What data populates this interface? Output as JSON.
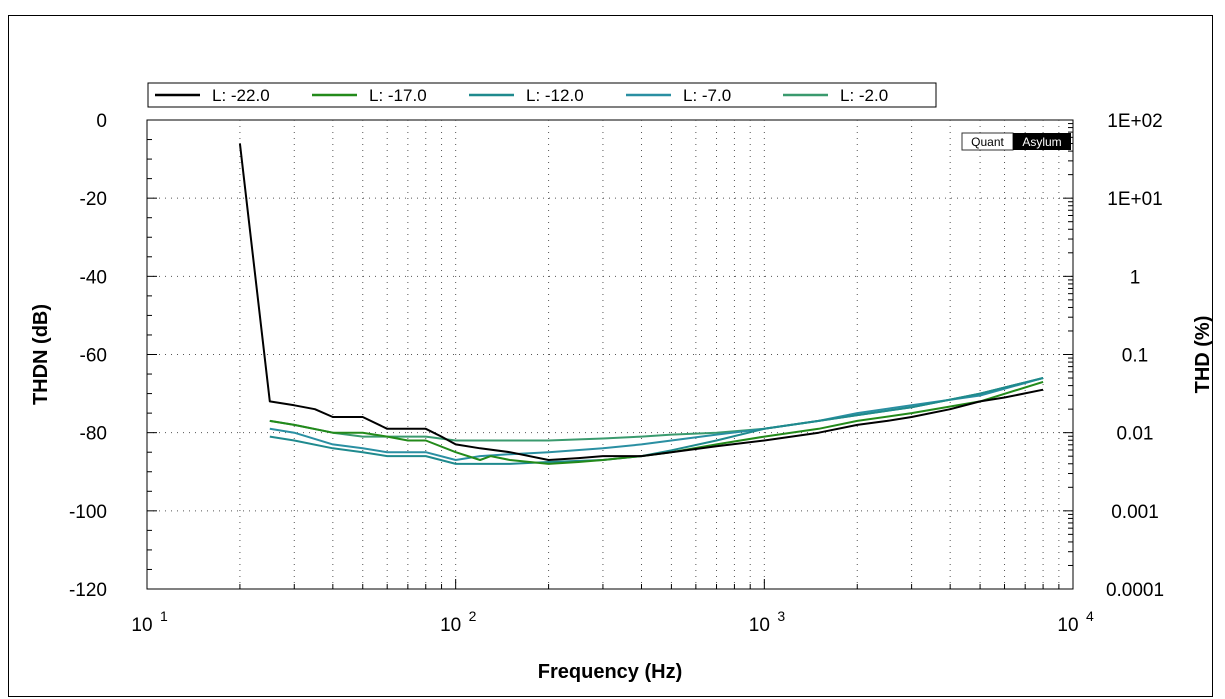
{
  "chart_data": {
    "type": "line",
    "title": "",
    "xlabel": "Frequency (Hz)",
    "ylabel": "THDN (dB)",
    "y2label": "THD (%)",
    "xscale": "log",
    "xlim": [
      10,
      10000
    ],
    "ylim": [
      -120,
      0
    ],
    "y2scale": "log",
    "y2lim": [
      0.0001,
      100
    ],
    "grid": true,
    "legend_position": "top",
    "x_ticks": [
      {
        "base": "10",
        "exp": "1"
      },
      {
        "base": "10",
        "exp": "2"
      },
      {
        "base": "10",
        "exp": "3"
      },
      {
        "base": "10",
        "exp": "4"
      }
    ],
    "y_ticks": [
      "0",
      "-20",
      "-40",
      "-60",
      "-80",
      "-100",
      "-120"
    ],
    "y2_ticks": [
      "1E+02",
      "1E+01",
      "1",
      "0.1",
      "0.01",
      "0.001",
      "0.0001"
    ],
    "watermark": {
      "left": "Quant",
      "right": "Asylum"
    },
    "series": [
      {
        "name": "L: -22.0",
        "color": "#000000",
        "points": [
          [
            20,
            -6
          ],
          [
            25,
            -72
          ],
          [
            30,
            -73
          ],
          [
            35,
            -74
          ],
          [
            40,
            -76
          ],
          [
            50,
            -76
          ],
          [
            60,
            -79
          ],
          [
            70,
            -79
          ],
          [
            80,
            -79
          ],
          [
            90,
            -81
          ],
          [
            100,
            -83
          ],
          [
            120,
            -84
          ],
          [
            150,
            -85
          ],
          [
            200,
            -87
          ],
          [
            250,
            -86.5
          ],
          [
            300,
            -86
          ],
          [
            400,
            -86
          ],
          [
            500,
            -85
          ],
          [
            700,
            -83.5
          ],
          [
            1000,
            -82
          ],
          [
            1500,
            -80
          ],
          [
            2000,
            -78
          ],
          [
            2500,
            -77
          ],
          [
            3000,
            -76
          ],
          [
            4000,
            -74
          ],
          [
            5000,
            -72
          ],
          [
            6000,
            -71
          ],
          [
            8000,
            -69
          ]
        ]
      },
      {
        "name": "L: -17.0",
        "color": "#238a1a",
        "points": [
          [
            25,
            -77
          ],
          [
            30,
            -78
          ],
          [
            40,
            -80
          ],
          [
            50,
            -80
          ],
          [
            60,
            -81
          ],
          [
            70,
            -82
          ],
          [
            80,
            -82
          ],
          [
            100,
            -85
          ],
          [
            120,
            -87
          ],
          [
            130,
            -86
          ],
          [
            150,
            -87
          ],
          [
            200,
            -88
          ],
          [
            250,
            -87.5
          ],
          [
            300,
            -87
          ],
          [
            400,
            -86
          ],
          [
            500,
            -85
          ],
          [
            700,
            -83
          ],
          [
            1000,
            -81
          ],
          [
            1500,
            -79
          ],
          [
            2000,
            -77
          ],
          [
            3000,
            -75
          ],
          [
            5000,
            -72
          ],
          [
            8000,
            -67
          ]
        ]
      },
      {
        "name": "L: -12.0",
        "color": "#1f8a8e",
        "points": [
          [
            25,
            -81
          ],
          [
            30,
            -82
          ],
          [
            40,
            -84
          ],
          [
            50,
            -85
          ],
          [
            60,
            -86
          ],
          [
            70,
            -86
          ],
          [
            80,
            -86
          ],
          [
            100,
            -88
          ],
          [
            150,
            -88
          ],
          [
            200,
            -87.5
          ],
          [
            300,
            -87
          ],
          [
            400,
            -86
          ],
          [
            500,
            -84.5
          ],
          [
            700,
            -82
          ],
          [
            1000,
            -79
          ],
          [
            1500,
            -77
          ],
          [
            2000,
            -75.5
          ],
          [
            3000,
            -73.5
          ],
          [
            5000,
            -70
          ],
          [
            8000,
            -66
          ]
        ]
      },
      {
        "name": "L: -7.0",
        "color": "#2a8fa2",
        "points": [
          [
            25,
            -79
          ],
          [
            30,
            -80
          ],
          [
            40,
            -83
          ],
          [
            50,
            -84
          ],
          [
            60,
            -85
          ],
          [
            70,
            -85
          ],
          [
            80,
            -85
          ],
          [
            100,
            -87
          ],
          [
            120,
            -86
          ],
          [
            150,
            -85.5
          ],
          [
            200,
            -85
          ],
          [
            300,
            -84
          ],
          [
            400,
            -83
          ],
          [
            500,
            -82
          ],
          [
            700,
            -80.5
          ],
          [
            1000,
            -79
          ],
          [
            1500,
            -77
          ],
          [
            2000,
            -75
          ],
          [
            3000,
            -73
          ],
          [
            5000,
            -70.5
          ],
          [
            8000,
            -66
          ]
        ]
      },
      {
        "name": "L: -2.0",
        "color": "#3a9a6e",
        "points": [
          [
            25,
            -77
          ],
          [
            30,
            -78
          ],
          [
            40,
            -80
          ],
          [
            50,
            -81
          ],
          [
            60,
            -81
          ],
          [
            70,
            -81
          ],
          [
            80,
            -81
          ],
          [
            100,
            -82
          ],
          [
            150,
            -82
          ],
          [
            200,
            -82
          ],
          [
            300,
            -81.5
          ],
          [
            400,
            -81
          ],
          [
            500,
            -80.5
          ],
          [
            700,
            -80
          ],
          [
            1000,
            -79
          ],
          [
            1500,
            -77
          ],
          [
            2000,
            -75.5
          ],
          [
            3000,
            -73.5
          ],
          [
            5000,
            -70
          ],
          [
            8000,
            -66
          ]
        ]
      }
    ]
  }
}
